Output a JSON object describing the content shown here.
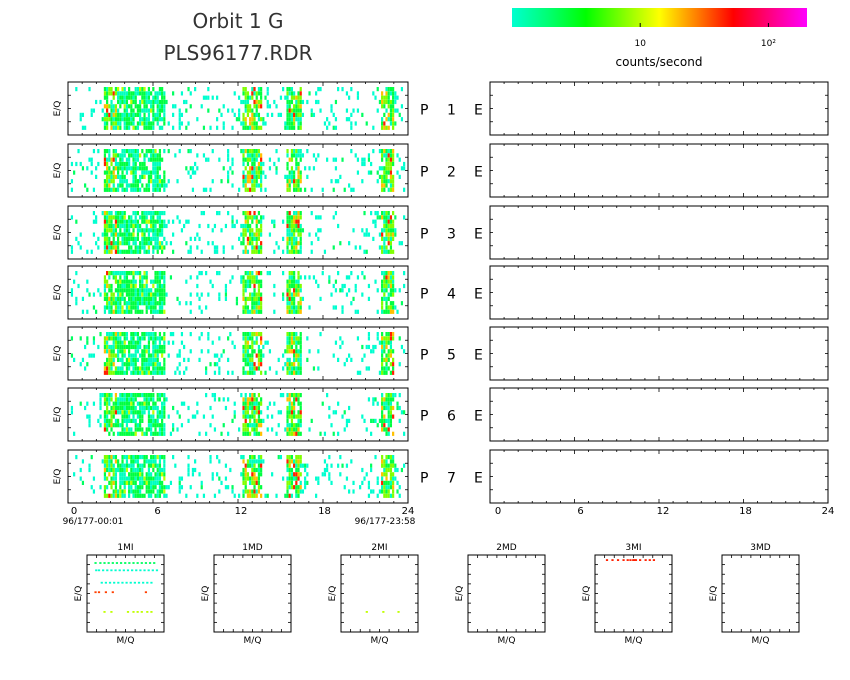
{
  "header": {
    "title_line1": "Orbit 1 G",
    "title_line2": "PLS96177.RDR"
  },
  "colorbar": {
    "label": "counts/second",
    "ticks": [
      {
        "value": 10,
        "text": "10"
      },
      {
        "value": 100,
        "text": "10²"
      }
    ],
    "stops": [
      "#00ffd0",
      "#00ff70",
      "#00ff00",
      "#80ff00",
      "#ffff00",
      "#ff8000",
      "#ff0000",
      "#ff0080",
      "#ff00ff"
    ],
    "range": [
      1,
      200
    ],
    "scale": "log"
  },
  "chart_data": [
    {
      "type": "heatmap",
      "name_left": "P",
      "rows": [
        {
          "label_p": "P",
          "number": "1",
          "label_e": "E"
        },
        {
          "label_p": "P",
          "number": "2",
          "label_e": "E"
        },
        {
          "label_p": "P",
          "number": "3",
          "label_e": "E"
        },
        {
          "label_p": "P",
          "number": "4",
          "label_e": "E"
        },
        {
          "label_p": "P",
          "number": "5",
          "label_e": "E"
        },
        {
          "label_p": "P",
          "number": "6",
          "label_e": "E"
        },
        {
          "label_p": "P",
          "number": "7",
          "label_e": "E"
        }
      ],
      "ylabel": "E/Q",
      "xlim": [
        0,
        24
      ],
      "xticks": [
        0,
        6,
        12,
        18,
        24
      ],
      "x_start_label": "96/177-00:01",
      "x_end_label": "96/177-23:58",
      "activity_bands_hours": [
        {
          "start": 2.4,
          "end": 3.4,
          "level": "high"
        },
        {
          "start": 3.4,
          "end": 6.8,
          "level": "medium"
        },
        {
          "start": 12.3,
          "end": 13.6,
          "level": "high"
        },
        {
          "start": 15.4,
          "end": 16.5,
          "level": "high"
        },
        {
          "start": 22.0,
          "end": 23.0,
          "level": "high"
        }
      ],
      "sparse_background": true
    },
    {
      "type": "heatmap",
      "description_panels": "right column, 7 empty panels",
      "xlim": [
        0,
        24
      ],
      "xticks": [
        0,
        6,
        12,
        18,
        24
      ],
      "empty": true
    },
    {
      "type": "scatter",
      "panels": [
        {
          "title": "1MI",
          "xlabel": "M/Q",
          "ylabel": "E/Q",
          "rows": [
            {
              "y": 0.93,
              "color": "#00ff60",
              "xs": [
                0.05,
                0.12,
                0.18,
                0.24,
                0.3,
                0.36,
                0.42,
                0.48,
                0.54,
                0.6,
                0.66,
                0.72,
                0.78,
                0.84,
                0.9
              ]
            },
            {
              "y": 0.83,
              "color": "#00ffd0",
              "xs": [
                0.06,
                0.1,
                0.16,
                0.22,
                0.28,
                0.34,
                0.4,
                0.46,
                0.52,
                0.58,
                0.64,
                0.7,
                0.76,
                0.82,
                0.88,
                0.94
              ]
            },
            {
              "y": 0.66,
              "color": "#00ffd0",
              "xs": [
                0.14,
                0.2,
                0.26,
                0.32,
                0.38,
                0.44,
                0.5,
                0.56,
                0.62,
                0.68,
                0.74,
                0.8,
                0.86
              ]
            },
            {
              "y": 0.53,
              "color": "#ff4000",
              "xs": [
                0.05,
                0.1,
                0.2,
                0.3,
                0.78
              ]
            },
            {
              "y": 0.26,
              "color": "#c0ff00",
              "xs": [
                0.18,
                0.28,
                0.52,
                0.6,
                0.66,
                0.72,
                0.8,
                0.86
              ]
            }
          ]
        },
        {
          "title": "1MD",
          "xlabel": "M/Q",
          "ylabel": "E/Q",
          "rows": []
        },
        {
          "title": "2MI",
          "xlabel": "M/Q",
          "ylabel": "E/Q",
          "rows": [
            {
              "y": 0.26,
              "color": "#c0ff00",
              "xs": [
                0.3,
                0.54,
                0.76
              ]
            }
          ]
        },
        {
          "title": "2MD",
          "xlabel": "M/Q",
          "ylabel": "E/Q",
          "rows": []
        },
        {
          "title": "3MI",
          "xlabel": "M/Q",
          "ylabel": "E/Q",
          "rows": [
            {
              "y": 0.97,
              "color": "#ff2000",
              "xs": [
                0.1,
                0.18,
                0.26,
                0.34,
                0.4,
                0.44,
                0.48,
                0.5,
                0.52,
                0.58,
                0.66,
                0.72,
                0.78
              ]
            }
          ]
        },
        {
          "title": "3MD",
          "xlabel": "M/Q",
          "ylabel": "E/Q",
          "rows": []
        }
      ]
    }
  ]
}
